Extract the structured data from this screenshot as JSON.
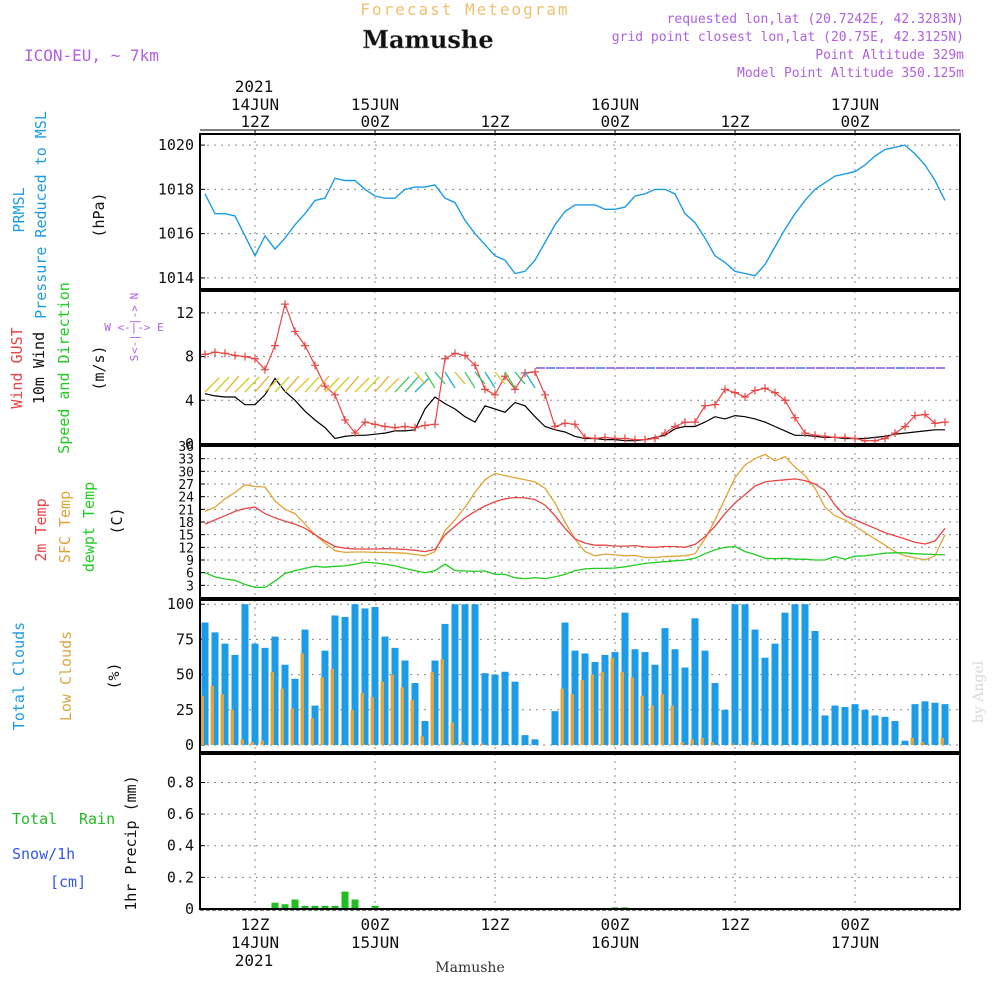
{
  "header": {
    "product": "Forecast Meteogram",
    "location": "Mamushe",
    "model": "ICON-EU, ~ 7km",
    "requested": "requested lon,lat (20.7242E, 42.3283N)",
    "gridpoint": "grid point closest lon,lat (20.75E, 42.3125N)",
    "point_alt": "Point Altitude 329m",
    "model_alt": "Model Point Altitude 350.125m"
  },
  "footer": {
    "location": "Mamushe",
    "credit": "by Angel"
  },
  "colors": {
    "pressure": "#1e9be6",
    "gust": "#e84545",
    "wind": "#000000",
    "temp2m": "#e84545",
    "sfc": "#e0a43a",
    "dewpt": "#22cc22",
    "total_clouds": "#1e9be6",
    "low_clouds": "#d9a845",
    "rain": "#22bb22",
    "header_orange": "#f0c070",
    "header_purple": "#b060e0",
    "snow_blue": "#3355ee"
  },
  "top_axis": {
    "year": "2021",
    "ticks": [
      {
        "t": 12,
        "line1": "14JUN",
        "line2": "12Z"
      },
      {
        "t": 24,
        "line1": "15JUN",
        "line2": "00Z"
      },
      {
        "t": 36,
        "line1": "",
        "line2": "12Z"
      },
      {
        "t": 48,
        "line1": "16JUN",
        "line2": "00Z"
      },
      {
        "t": 60,
        "line1": "",
        "line2": "12Z"
      },
      {
        "t": 72,
        "line1": "17JUN",
        "line2": "00Z"
      }
    ]
  },
  "bottom_axis": {
    "year": "2021",
    "ticks": [
      {
        "t": 12,
        "line1": "12Z",
        "line2": "14JUN"
      },
      {
        "t": 24,
        "line1": "00Z",
        "line2": "15JUN"
      },
      {
        "t": 36,
        "line1": "12Z",
        "line2": ""
      },
      {
        "t": 48,
        "line1": "00Z",
        "line2": "16JUN"
      },
      {
        "t": 60,
        "line1": "12Z",
        "line2": ""
      },
      {
        "t": 72,
        "line1": "00Z",
        "line2": "17JUN"
      }
    ]
  },
  "labels": {
    "pressure": {
      "l1": "PRMSL",
      "l2": "Pressure Reduced to MSL",
      "unit": "(hPa)"
    },
    "wind": {
      "l1": "Wind GUST",
      "l2": "10m Wind",
      "l3": "Speed and Direction",
      "unit": "(m/s)",
      "compass_n": "N",
      "compass_s": "S",
      "compass_row": "W <-|-> E",
      "compass_col_up": "|->",
      "compass_col_dn": "<-|"
    },
    "temp": {
      "l1": "2m Temp",
      "l2": "SFC Temp",
      "l3": "dewpt Temp",
      "unit": "(C)"
    },
    "clouds": {
      "l1": "Total Clouds",
      "l2": "Low Clouds",
      "unit": "(%)"
    },
    "precip": {
      "l1": "Total",
      "l1b": "Rain",
      "l2": "Snow/1h",
      "l3": "[cm]",
      "unit": "1hr Precip (mm)"
    }
  },
  "chart_data": [
    {
      "type": "line",
      "title": "PRMSL Pressure Reduced to MSL",
      "ylabel": "(hPa)",
      "x_hours_from": "2021-06-14 07Z",
      "ylim": [
        1013.5,
        1020.5
      ],
      "yticks": [
        1014,
        1016,
        1018,
        1020
      ],
      "series": [
        {
          "name": "PRMSL",
          "values": [
            1017.8,
            1016.9,
            1016.9,
            1016.8,
            1015.9,
            1015.0,
            1015.9,
            1015.3,
            1015.8,
            1016.4,
            1016.9,
            1017.5,
            1017.6,
            1018.5,
            1018.4,
            1018.4,
            1018.0,
            1017.7,
            1017.6,
            1017.6,
            1018.0,
            1018.1,
            1018.1,
            1018.2,
            1017.6,
            1017.4,
            1016.6,
            1016.0,
            1015.5,
            1015.0,
            1014.8,
            1014.2,
            1014.3,
            1014.8,
            1015.6,
            1016.4,
            1017.0,
            1017.3,
            1017.3,
            1017.3,
            1017.1,
            1017.1,
            1017.2,
            1017.7,
            1017.8,
            1018.0,
            1018.0,
            1017.8,
            1016.9,
            1016.5,
            1015.8,
            1015.0,
            1014.7,
            1014.3,
            1014.2,
            1014.1,
            1014.6,
            1015.4,
            1016.2,
            1016.9,
            1017.5,
            1018.0,
            1018.3,
            1018.6,
            1018.7,
            1018.8,
            1019.1,
            1019.5,
            1019.8,
            1019.9,
            1020.0,
            1019.6,
            1019.1,
            1018.4,
            1017.5
          ]
        }
      ]
    },
    {
      "type": "line",
      "title": "Wind GUST / 10m Wind Speed and Direction",
      "ylabel": "(m/s)",
      "ylim": [
        0,
        14
      ],
      "yticks": [
        0,
        4,
        8,
        12
      ],
      "series": [
        {
          "name": "Wind GUST",
          "values": [
            8.2,
            8.4,
            8.3,
            8.1,
            8.0,
            7.8,
            6.8,
            9.0,
            12.8,
            10.3,
            9.0,
            7.2,
            5.3,
            4.5,
            2.2,
            1.0,
            2.0,
            1.8,
            1.6,
            1.5,
            1.6,
            1.5,
            1.7,
            1.8,
            7.8,
            8.3,
            8.1,
            7.2,
            5.0,
            4.5,
            6.2,
            5.0,
            6.5,
            6.6,
            4.5,
            1.6,
            1.9,
            1.8,
            0.6,
            0.5,
            0.6,
            0.5,
            0.5,
            0.4,
            0.4,
            0.5,
            1.0,
            1.6,
            2.0,
            2.0,
            3.5,
            3.6,
            5.0,
            4.7,
            4.3,
            4.9,
            5.1,
            4.7,
            4.0,
            2.4,
            1.0,
            0.8,
            0.7,
            0.6,
            0.6,
            0.5,
            0.3,
            0.3,
            0.5,
            1.0,
            1.6,
            2.6,
            2.7,
            1.9,
            2.0
          ]
        },
        {
          "name": "10m Wind",
          "values": [
            4.6,
            4.4,
            4.3,
            4.3,
            3.6,
            3.6,
            4.5,
            6.0,
            4.8,
            4.0,
            3.0,
            2.2,
            1.5,
            0.5,
            0.7,
            0.8,
            0.8,
            0.9,
            1.0,
            1.2,
            1.2,
            1.3,
            3.2,
            4.3,
            3.7,
            3.2,
            2.5,
            2.0,
            3.5,
            3.2,
            2.9,
            3.8,
            3.5,
            2.5,
            1.6,
            1.3,
            1.1,
            0.7,
            0.5,
            0.5,
            0.4,
            0.4,
            0.3,
            0.3,
            0.4,
            0.6,
            0.8,
            1.4,
            1.6,
            1.6,
            2.0,
            2.5,
            2.3,
            2.6,
            2.5,
            2.3,
            2.0,
            1.6,
            1.2,
            0.8,
            0.8,
            0.7,
            0.6,
            0.6,
            0.5,
            0.5,
            0.5,
            0.6,
            0.7,
            0.9,
            1.0,
            1.1,
            1.2,
            1.3,
            1.3
          ]
        }
      ]
    },
    {
      "type": "line",
      "title": "2m Temp / SFC Temp / dewpt Temp",
      "ylabel": "(C)",
      "ylim": [
        0,
        36
      ],
      "yticks": [
        3,
        6,
        9,
        12,
        15,
        18,
        21,
        24,
        27,
        30,
        33,
        36
      ],
      "series": [
        {
          "name": "2m Temp",
          "values": [
            17.5,
            18.5,
            19.5,
            20.5,
            21.2,
            21.5,
            20.0,
            19.0,
            18.2,
            17.5,
            16.5,
            15.0,
            13.5,
            12.2,
            11.8,
            11.6,
            11.6,
            11.6,
            11.7,
            11.6,
            11.5,
            11.3,
            11.0,
            11.5,
            15.0,
            17.0,
            19.0,
            20.5,
            21.8,
            22.8,
            23.5,
            23.8,
            23.7,
            23.3,
            22.0,
            19.5,
            16.5,
            14.0,
            13.0,
            12.5,
            12.5,
            12.3,
            12.3,
            12.4,
            12.1,
            12.0,
            12.2,
            12.2,
            12.0,
            12.7,
            14.5,
            17.0,
            20.0,
            22.5,
            24.5,
            26.5,
            27.5,
            27.8,
            28.0,
            28.2,
            27.8,
            27.0,
            25.5,
            22.0,
            19.5,
            18.5,
            17.5,
            16.5,
            15.5,
            14.7,
            14.0,
            13.2,
            12.8,
            13.5,
            16.5
          ]
        },
        {
          "name": "SFC Temp",
          "values": [
            20.5,
            21.5,
            23.5,
            25.0,
            26.8,
            26.4,
            26.3,
            23.0,
            21.0,
            20.0,
            17.5,
            15.0,
            13.0,
            11.2,
            10.8,
            10.9,
            10.9,
            10.8,
            10.8,
            10.7,
            10.6,
            10.3,
            10.0,
            11.0,
            16.0,
            18.5,
            21.5,
            25.0,
            28.0,
            29.5,
            29.0,
            28.5,
            28.0,
            27.5,
            26.0,
            22.5,
            18.0,
            14.0,
            11.0,
            10.0,
            10.4,
            10.2,
            10.0,
            10.1,
            9.6,
            9.6,
            9.8,
            9.9,
            10.0,
            10.5,
            14.0,
            18.5,
            23.5,
            28.5,
            31.5,
            33.0,
            34.0,
            32.5,
            33.5,
            31.0,
            29.0,
            26.0,
            21.5,
            19.5,
            18.5,
            17.0,
            15.5,
            14.0,
            12.5,
            11.0,
            10.0,
            9.5,
            9.0,
            10.0,
            15.0
          ]
        },
        {
          "name": "dewpt Temp",
          "values": [
            6.0,
            5.0,
            4.5,
            4.2,
            3.2,
            2.5,
            2.5,
            4.0,
            5.8,
            6.5,
            7.0,
            7.5,
            7.3,
            7.5,
            7.6,
            8.0,
            8.5,
            8.3,
            8.0,
            7.6,
            7.0,
            6.5,
            6.0,
            6.5,
            8.0,
            6.5,
            6.4,
            6.3,
            6.4,
            5.6,
            5.6,
            4.8,
            4.6,
            4.8,
            4.6,
            5.0,
            5.6,
            6.5,
            6.9,
            7.0,
            7.0,
            7.1,
            7.4,
            7.8,
            8.2,
            8.4,
            8.6,
            8.8,
            9.0,
            9.4,
            10.5,
            11.4,
            12.0,
            12.2,
            11.0,
            10.3,
            9.4,
            9.3,
            9.4,
            9.2,
            9.2,
            9.0,
            9.0,
            9.8,
            9.2,
            9.9,
            10.0,
            10.3,
            10.6,
            10.7,
            10.7,
            10.5,
            10.4,
            10.3,
            10.2
          ]
        }
      ]
    },
    {
      "type": "bar",
      "title": "Total Clouds / Low Clouds",
      "ylabel": "(%)",
      "ylim": [
        -5,
        103
      ],
      "yticks": [
        0,
        25,
        50,
        75,
        100
      ],
      "series": [
        {
          "name": "Total Clouds",
          "values": [
            87,
            80,
            72,
            64,
            100,
            72,
            69,
            77,
            57,
            47,
            82,
            28,
            67,
            92,
            91,
            100,
            97,
            98,
            77,
            69,
            60,
            44,
            17,
            60,
            86,
            100,
            100,
            100,
            51,
            50,
            52,
            45,
            7,
            4,
            0,
            24,
            87,
            67,
            65,
            59,
            64,
            66,
            94,
            68,
            66,
            57,
            83,
            68,
            55,
            90,
            67,
            44,
            25,
            100,
            100,
            82,
            62,
            72,
            94,
            100,
            100,
            81,
            21,
            28,
            27,
            29,
            25,
            21,
            20,
            17,
            3,
            29,
            31,
            30,
            29
          ]
        },
        {
          "name": "Low Clouds",
          "values": [
            35,
            42,
            36,
            25,
            4,
            2,
            3,
            52,
            40,
            26,
            65,
            19,
            48,
            54,
            0,
            25,
            37,
            34,
            45,
            50,
            41,
            32,
            6,
            52,
            61,
            16,
            2,
            0,
            1,
            0,
            0,
            0,
            0,
            0,
            0,
            0,
            40,
            36,
            46,
            50,
            52,
            62,
            52,
            48,
            35,
            28,
            36,
            28,
            2,
            4,
            5,
            2,
            0,
            1,
            0,
            2,
            0,
            0,
            0,
            0,
            0,
            0,
            0,
            0,
            0,
            0,
            0,
            0,
            0,
            0,
            0,
            5,
            2,
            0,
            5
          ]
        }
      ]
    },
    {
      "type": "bar",
      "title": "Total Rain / Snow 1hr Precip",
      "ylabel": "1hr Precip (mm)",
      "ylim": [
        0,
        0.98
      ],
      "yticks": [
        0,
        0.2,
        0.4,
        0.6,
        0.8
      ],
      "series": [
        {
          "name": "Total Rain",
          "values": [
            0,
            0,
            0,
            0,
            0,
            0,
            0,
            0.04,
            0.03,
            0.06,
            0.02,
            0.02,
            0.02,
            0.02,
            0.11,
            0.06,
            0,
            0.02,
            0,
            0,
            0,
            0,
            0,
            0,
            0,
            0,
            0,
            0,
            0,
            0,
            0,
            0,
            0,
            0,
            0,
            0,
            0,
            0,
            0,
            0,
            0,
            0.01,
            0.01,
            0,
            0,
            0,
            0,
            0,
            0,
            0,
            0,
            0,
            0,
            0,
            0,
            0,
            0,
            0,
            0,
            0,
            0,
            0,
            0,
            0,
            0,
            0,
            0,
            0,
            0,
            0,
            0,
            0,
            0,
            0,
            0
          ]
        }
      ]
    }
  ]
}
